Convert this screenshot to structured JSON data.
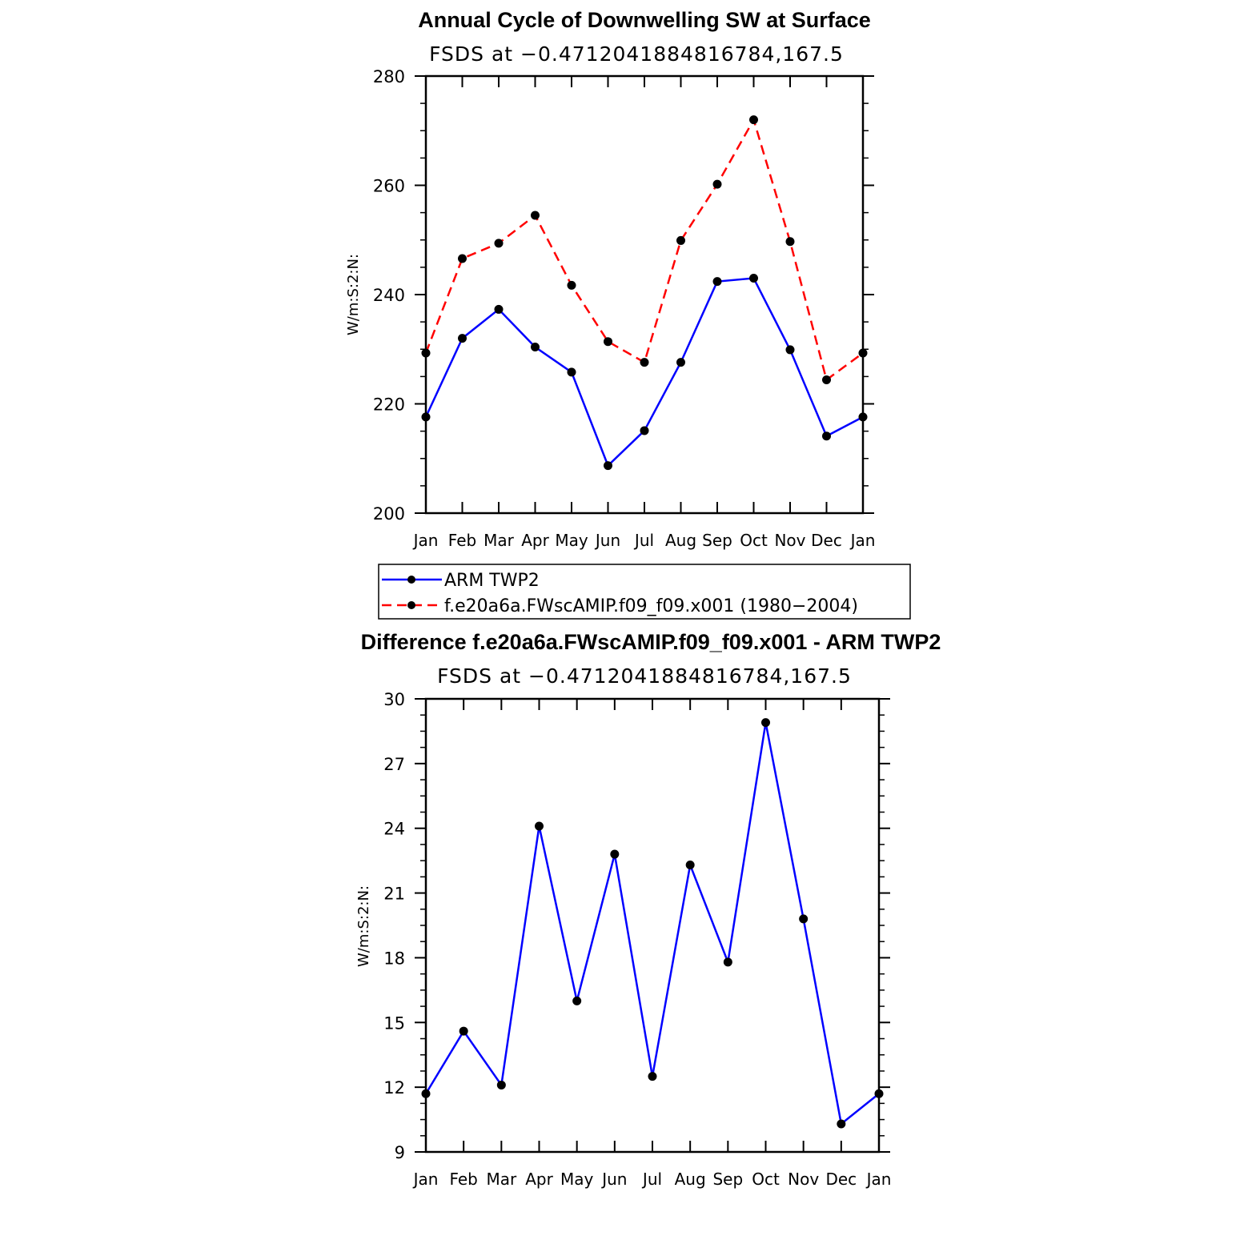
{
  "chart_data": [
    {
      "type": "line",
      "title": "Annual Cycle of Downwelling SW at Surface",
      "subtitle": "FSDS at −0.4712041884816784,167.5",
      "ylabel": "W/m:S:2:N:",
      "categories": [
        "Jan",
        "Feb",
        "Mar",
        "Apr",
        "May",
        "Jun",
        "Jul",
        "Aug",
        "Sep",
        "Oct",
        "Nov",
        "Dec",
        "Jan"
      ],
      "ylim": [
        200,
        280
      ],
      "yticks": [
        200,
        220,
        240,
        260,
        280
      ],
      "series": [
        {
          "name": "ARM TWP2",
          "color": "#0000ff",
          "dash": "solid",
          "values": [
            217.6,
            232.0,
            237.3,
            230.4,
            225.8,
            208.7,
            215.1,
            227.6,
            242.4,
            243.0,
            229.9,
            214.1,
            217.6
          ]
        },
        {
          "name": "f.e20a6a.FWscAMIP.f09_f09.x001 (1980−2004)",
          "color": "#ff0000",
          "dash": "dashed",
          "values": [
            229.3,
            246.6,
            249.4,
            254.5,
            241.7,
            231.4,
            227.6,
            249.9,
            260.2,
            272.0,
            249.7,
            224.4,
            229.3
          ]
        }
      ],
      "legend": "below"
    },
    {
      "type": "line",
      "title": "Difference f.e20a6a.FWscAMIP.f09_f09.x001 - ARM TWP2",
      "subtitle": "FSDS at −0.4712041884816784,167.5",
      "ylabel": "W/m:S:2:N:",
      "categories": [
        "Jan",
        "Feb",
        "Mar",
        "Apr",
        "May",
        "Jun",
        "Jul",
        "Aug",
        "Sep",
        "Oct",
        "Nov",
        "Dec",
        "Jan"
      ],
      "ylim": [
        9,
        30
      ],
      "yticks": [
        9,
        12,
        15,
        18,
        21,
        24,
        27,
        30
      ],
      "series": [
        {
          "color": "#0000ff",
          "dash": "solid",
          "values": [
            11.7,
            14.6,
            12.1,
            24.1,
            16.0,
            22.8,
            12.5,
            22.3,
            17.8,
            28.9,
            19.8,
            10.3,
            11.7
          ]
        }
      ]
    }
  ]
}
